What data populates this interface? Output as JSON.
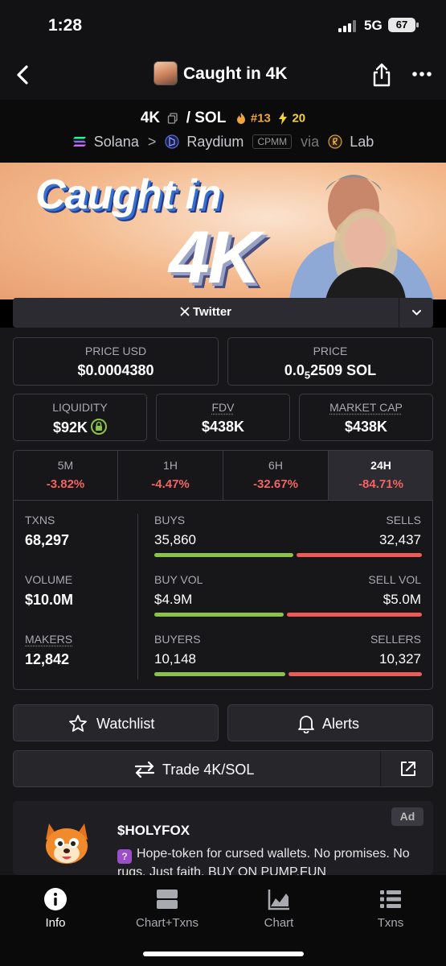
{
  "status_bar": {
    "time": "1:28",
    "network": "5G",
    "battery": "67"
  },
  "header": {
    "title": "Caught in 4K"
  },
  "pair": {
    "base": "4K",
    "slash": "/",
    "quote": "SOL",
    "rank": "#13",
    "boosts": "20"
  },
  "route": {
    "chain": "Solana",
    "separator": ">",
    "dex": "Raydium",
    "dex_type": "CPMM",
    "via": "via",
    "launchpad": "Lab"
  },
  "banner": {
    "line1": "Caught in",
    "line2": "4K"
  },
  "social": {
    "twitter_label": "Twitter"
  },
  "price": {
    "usd_label": "PRICE USD",
    "usd_value": "$0.0004380",
    "native_label": "PRICE",
    "native_prefix": "0.0",
    "native_zeros": "5",
    "native_digits": "2509 SOL"
  },
  "metrics": {
    "liquidity_label": "LIQUIDITY",
    "liquidity_value": "$92K",
    "fdv_label": "FDV",
    "fdv_value": "$438K",
    "mcap_label": "MARKET CAP",
    "mcap_value": "$438K"
  },
  "timeframes": [
    {
      "label": "5M",
      "change": "-3.82%"
    },
    {
      "label": "1H",
      "change": "-4.47%"
    },
    {
      "label": "6H",
      "change": "-32.67%"
    },
    {
      "label": "24H",
      "change": "-84.71%",
      "active": true
    }
  ],
  "stats": {
    "txns_label": "TXNS",
    "txns_value": "68,297",
    "volume_label": "VOLUME",
    "volume_value": "$10.0M",
    "makers_label": "MAKERS",
    "makers_value": "12,842",
    "buys_label": "BUYS",
    "buys_value": "35,860",
    "sells_label": "SELLS",
    "sells_value": "32,437",
    "buys_ratio": 0.525,
    "buyvol_label": "BUY VOL",
    "buyvol_value": "$4.9M",
    "sellvol_label": "SELL VOL",
    "sellvol_value": "$5.0M",
    "buyvol_ratio": 0.49,
    "buyers_label": "BUYERS",
    "buyers_value": "10,148",
    "sellers_label": "SELLERS",
    "sellers_value": "10,327",
    "buyers_ratio": 0.496
  },
  "actions": {
    "watchlist": "Watchlist",
    "alerts": "Alerts",
    "trade": "Trade 4K/SOL"
  },
  "ad": {
    "badge": "Ad",
    "title": "$HOLYFOX",
    "emoji": "?",
    "text": "Hope-token for cursed wallets. No promises. No rugs. Just faith. BUY ON PUMP.FUN"
  },
  "nav": {
    "info": "Info",
    "chart_txns": "Chart+Txns",
    "chart": "Chart",
    "txns": "Txns"
  },
  "colors": {
    "positive": "#8bc34a",
    "negative": "#ee5a5a",
    "background": "#17171a",
    "rank": "#f0a53a",
    "boost": "#f6d234"
  }
}
